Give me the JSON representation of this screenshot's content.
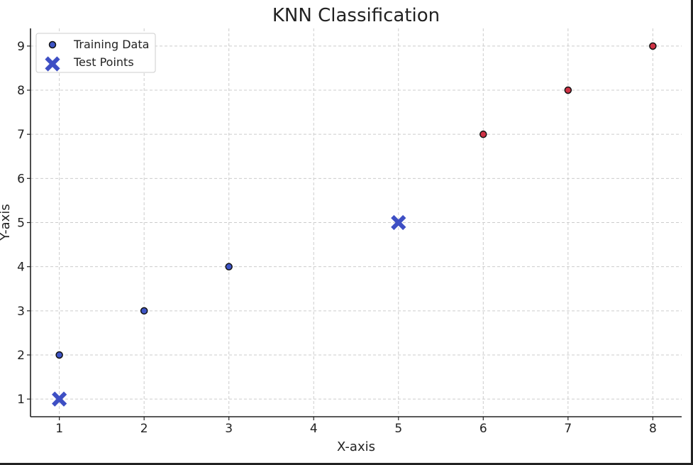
{
  "chart_data": {
    "type": "scatter",
    "title": "KNN Classification",
    "xlabel": "X-axis",
    "ylabel": "Y-axis",
    "xlim": [
      0.66,
      8.34
    ],
    "ylim": [
      0.6,
      9.4
    ],
    "xticks": [
      1,
      2,
      3,
      4,
      5,
      6,
      7,
      8
    ],
    "yticks": [
      1,
      2,
      3,
      4,
      5,
      6,
      7,
      8,
      9
    ],
    "grid": true,
    "legend_position": "top-left",
    "series": [
      {
        "name": "Training Data",
        "marker": "circle",
        "points": [
          {
            "x": 1,
            "y": 2,
            "color": "#3e55c6"
          },
          {
            "x": 2,
            "y": 3,
            "color": "#3e55c6"
          },
          {
            "x": 3,
            "y": 4,
            "color": "#3e55c6"
          },
          {
            "x": 6,
            "y": 7,
            "color": "#cf3245"
          },
          {
            "x": 7,
            "y": 8,
            "color": "#cf3245"
          },
          {
            "x": 8,
            "y": 9,
            "color": "#cf3245"
          }
        ]
      },
      {
        "name": "Test Points",
        "marker": "x-filled",
        "points": [
          {
            "x": 1,
            "y": 1,
            "color": "#3e4fc4"
          },
          {
            "x": 5,
            "y": 5,
            "color": "#3e4fc4"
          }
        ]
      }
    ],
    "colors": {
      "training_class_a": "#3e55c6",
      "training_class_b": "#cf3245",
      "test_point": "#3e4fc4",
      "grid": "#cccccc",
      "axis": "#222222"
    }
  }
}
